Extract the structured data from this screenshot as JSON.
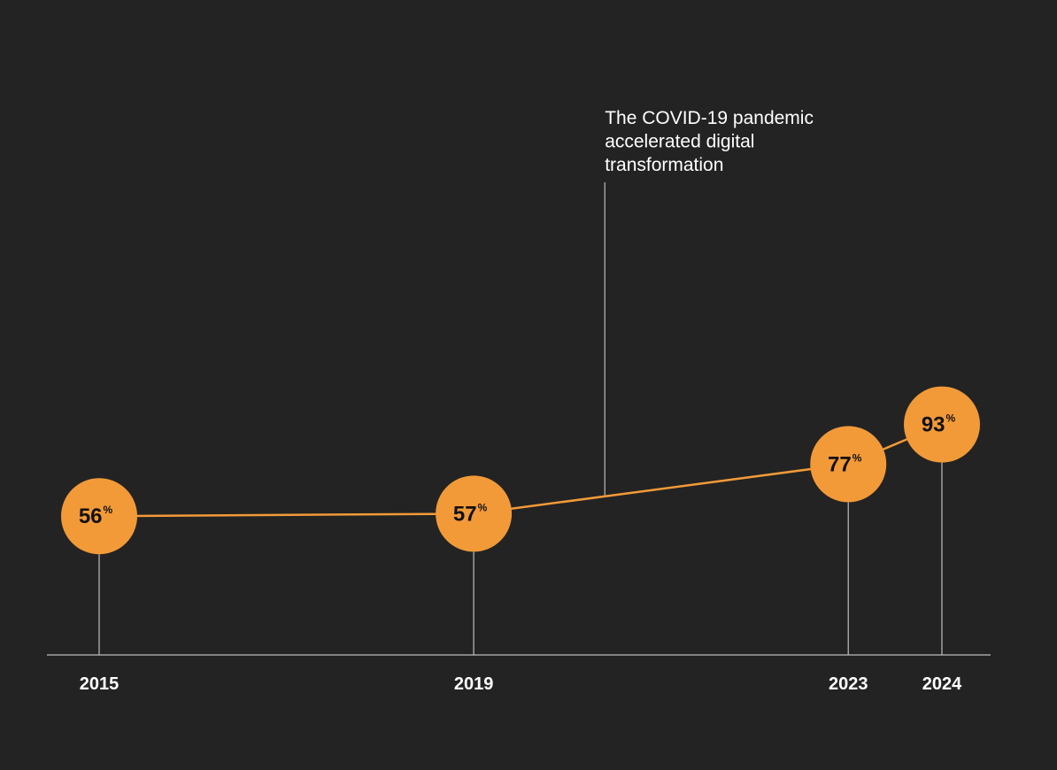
{
  "chart_data": {
    "type": "line",
    "x": [
      2015,
      2019,
      2023,
      2024
    ],
    "tick_labels": [
      "2015",
      "2019",
      "2023",
      "2024"
    ],
    "values": [
      56,
      57,
      77,
      93
    ],
    "value_labels": [
      "56",
      "57",
      "77",
      "93"
    ],
    "unit": "%",
    "xlim": [
      2014.7,
      2024.6
    ],
    "ylim": [
      0,
      115
    ],
    "grid": false,
    "annotation": {
      "x": 2020.4,
      "lines": [
        "The COVID-19 pandemic",
        "accelerated digital",
        "transformation"
      ]
    },
    "colors": {
      "background": "#232323",
      "marker": "#f29a38",
      "line": "#f29a38",
      "guide": "#bdbdbd",
      "text": "#ffffff",
      "marker_text": "#111111"
    }
  }
}
